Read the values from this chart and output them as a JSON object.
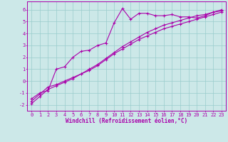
{
  "xlabel": "Windchill (Refroidissement éolien,°C)",
  "xlim": [
    -0.5,
    23.5
  ],
  "ylim": [
    -2.5,
    6.7
  ],
  "yticks": [
    -2,
    -1,
    0,
    1,
    2,
    3,
    4,
    5,
    6
  ],
  "xticks": [
    0,
    1,
    2,
    3,
    4,
    5,
    6,
    7,
    8,
    9,
    10,
    11,
    12,
    13,
    14,
    15,
    16,
    17,
    18,
    19,
    20,
    21,
    22,
    23
  ],
  "bg_color": "#cce8e8",
  "line_color": "#aa00aa",
  "grid_color": "#99cccc",
  "line1_x": [
    0,
    1,
    2,
    3,
    4,
    5,
    6,
    7,
    8,
    9,
    10,
    11,
    12,
    13,
    14,
    15,
    16,
    17,
    18,
    19,
    20,
    21,
    22,
    23
  ],
  "line1_y": [
    -1.5,
    -1.0,
    -0.8,
    1.0,
    1.2,
    2.0,
    2.5,
    2.6,
    3.0,
    3.2,
    4.9,
    6.1,
    5.2,
    5.7,
    5.7,
    5.5,
    5.5,
    5.6,
    5.4,
    5.4,
    5.3,
    5.5,
    5.8,
    5.9
  ],
  "line2_x": [
    0,
    1,
    2,
    3,
    4,
    5,
    6,
    7,
    8,
    9,
    10,
    11,
    12,
    13,
    14,
    15,
    16,
    17,
    18,
    19,
    20,
    21,
    22,
    23
  ],
  "line2_y": [
    -1.7,
    -1.1,
    -0.5,
    -0.3,
    0.0,
    0.3,
    0.6,
    0.9,
    1.3,
    1.8,
    2.3,
    2.7,
    3.1,
    3.5,
    3.8,
    4.1,
    4.4,
    4.6,
    4.8,
    5.0,
    5.2,
    5.4,
    5.6,
    5.8
  ],
  "line3_x": [
    0,
    1,
    2,
    3,
    4,
    5,
    6,
    7,
    8,
    9,
    10,
    11,
    12,
    13,
    14,
    15,
    16,
    17,
    18,
    19,
    20,
    21,
    22,
    23
  ],
  "line3_y": [
    -1.9,
    -1.3,
    -0.7,
    -0.4,
    -0.1,
    0.2,
    0.6,
    1.0,
    1.4,
    1.9,
    2.4,
    2.9,
    3.3,
    3.7,
    4.1,
    4.4,
    4.7,
    4.9,
    5.1,
    5.3,
    5.5,
    5.6,
    5.8,
    6.0
  ],
  "tick_fontsize": 5.0,
  "xlabel_fontsize": 5.5,
  "marker_size": 3.0,
  "linewidth": 0.8
}
